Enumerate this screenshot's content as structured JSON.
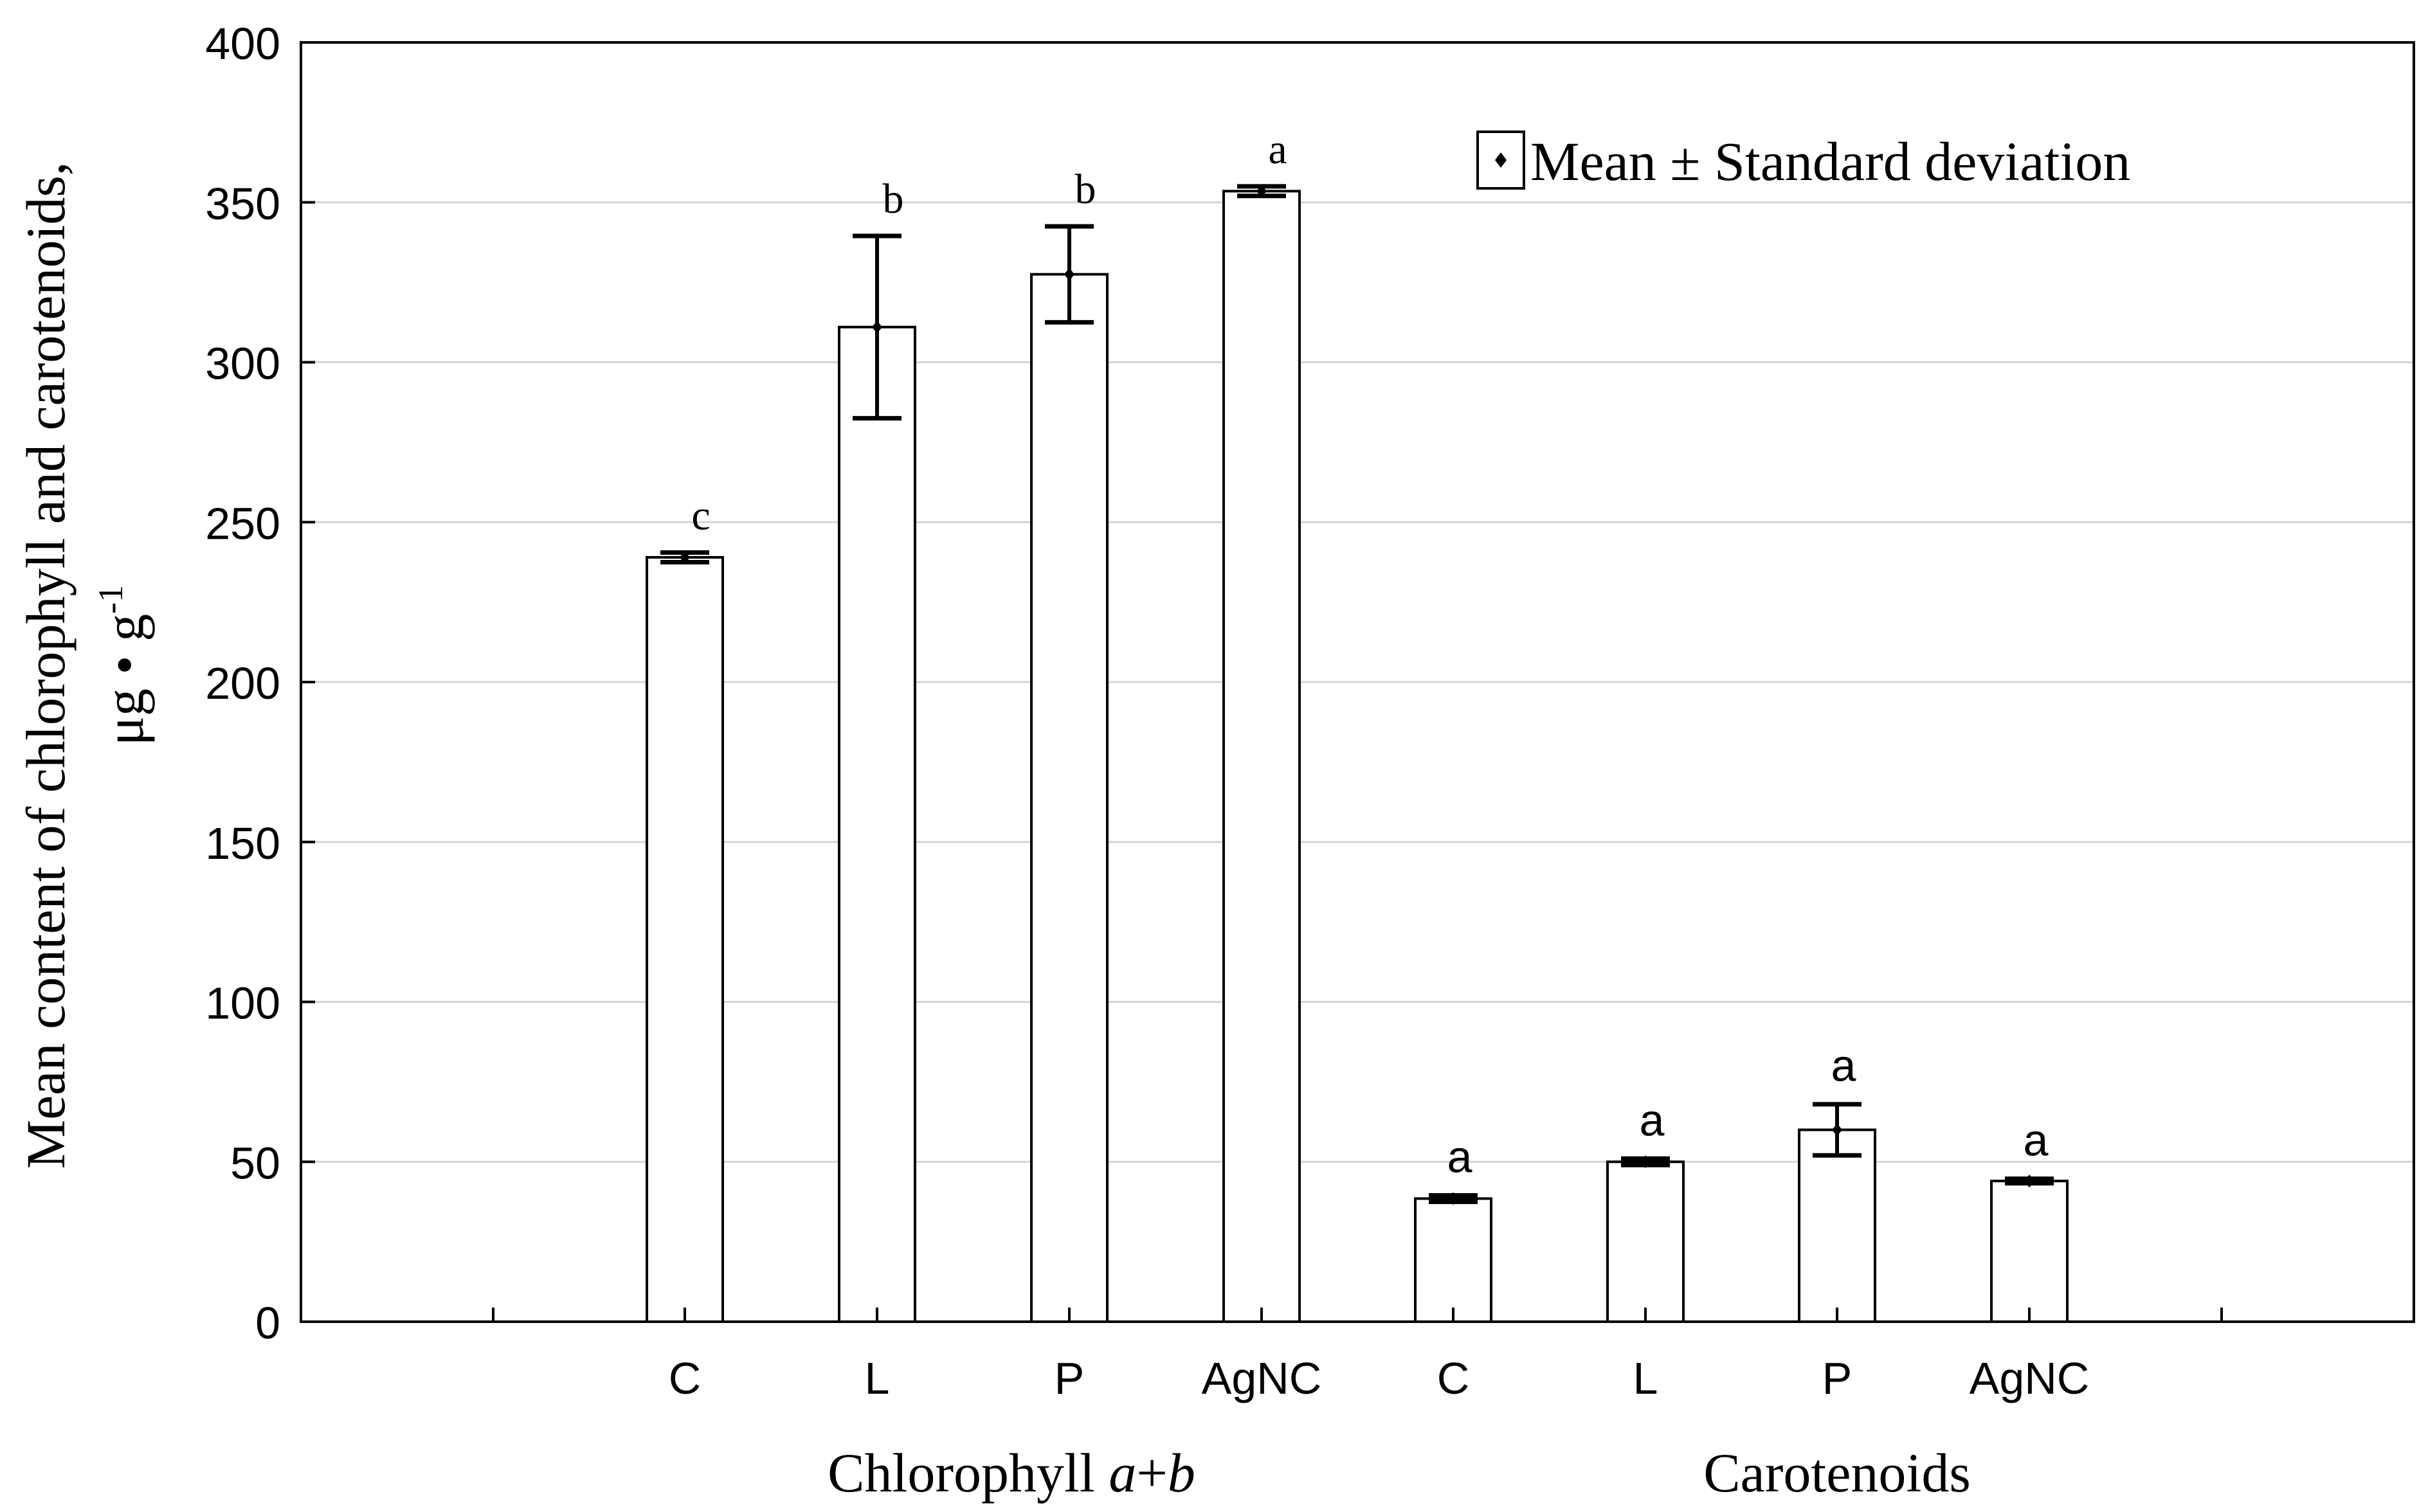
{
  "chart_data": {
    "type": "bar",
    "ylabel_line1": "Mean content of chlorophyll  and carotenoids,",
    "ylabel_unit_prefix": "μg • g",
    "ylabel_unit_exp": "-1",
    "ylim": [
      0,
      400
    ],
    "yticks": [
      "0",
      "50",
      "100",
      "150",
      "200",
      "250",
      "300",
      "350",
      "400"
    ],
    "grid": true,
    "legend": {
      "label": "Mean ± Standard deviation",
      "position": "top-right"
    },
    "groups": [
      {
        "name_prefix": "Chlorophyll ",
        "name_italic": "a",
        "name_mid": "+",
        "name_italic2": "b",
        "categories": [
          "C",
          "L",
          "P",
          "AgNC"
        ],
        "values": [
          239,
          311,
          327.5,
          353.5
        ],
        "sd": [
          1.5,
          28.5,
          15,
          1.5
        ],
        "letters": [
          "c",
          "b",
          "b",
          "a"
        ],
        "letter_style": "serif"
      },
      {
        "name_prefix": "Carotenoids",
        "name_italic": "",
        "name_mid": "",
        "name_italic2": "",
        "categories": [
          "C",
          "L",
          "P",
          "AgNC"
        ],
        "values": [
          38.5,
          50,
          60,
          44
        ],
        "sd": [
          1,
          1,
          8,
          0.7
        ],
        "letters": [
          "a",
          "a",
          "a",
          "a"
        ],
        "letter_style": "sans"
      }
    ],
    "colors": {
      "bar_fill": "#ffffff",
      "stroke": "#000000",
      "grid": "#d4d4d4"
    }
  }
}
